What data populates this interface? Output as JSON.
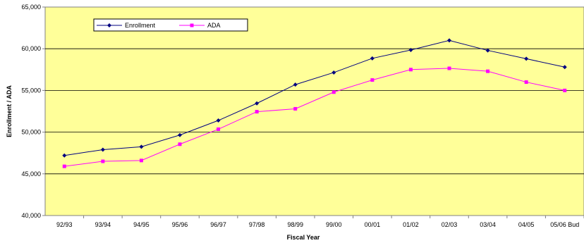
{
  "chart_data": {
    "type": "line",
    "title": "",
    "xlabel": "Fiscal Year",
    "ylabel": "Enrollment / ADA",
    "categories": [
      "92/93",
      "93/94",
      "94/95",
      "95/96",
      "96/97",
      "97/98",
      "98/99",
      "99/00",
      "00/01",
      "01/02",
      "02/03",
      "03/04",
      "04/05",
      "05/06 Bud"
    ],
    "ylim": [
      40000,
      65000
    ],
    "yticks": [
      40000,
      45000,
      50000,
      55000,
      60000,
      65000
    ],
    "ytick_labels": [
      "40,000",
      "45,000",
      "50,000",
      "55,000",
      "60,000",
      "65,000"
    ],
    "grid": "horizontal",
    "legend_position": "top-left",
    "plot_background": "#ffff99",
    "series": [
      {
        "name": "Enrollment",
        "color": "#000080",
        "marker": "diamond",
        "values": [
          47200,
          47900,
          48250,
          49650,
          51400,
          53450,
          55700,
          57150,
          58850,
          59850,
          61000,
          59800,
          58800,
          57800
        ]
      },
      {
        "name": "ADA",
        "color": "#ff00ff",
        "marker": "square",
        "values": [
          45900,
          46500,
          46600,
          48550,
          50350,
          52450,
          52800,
          54800,
          56250,
          57500,
          57650,
          57300,
          56000,
          55000
        ]
      }
    ]
  }
}
